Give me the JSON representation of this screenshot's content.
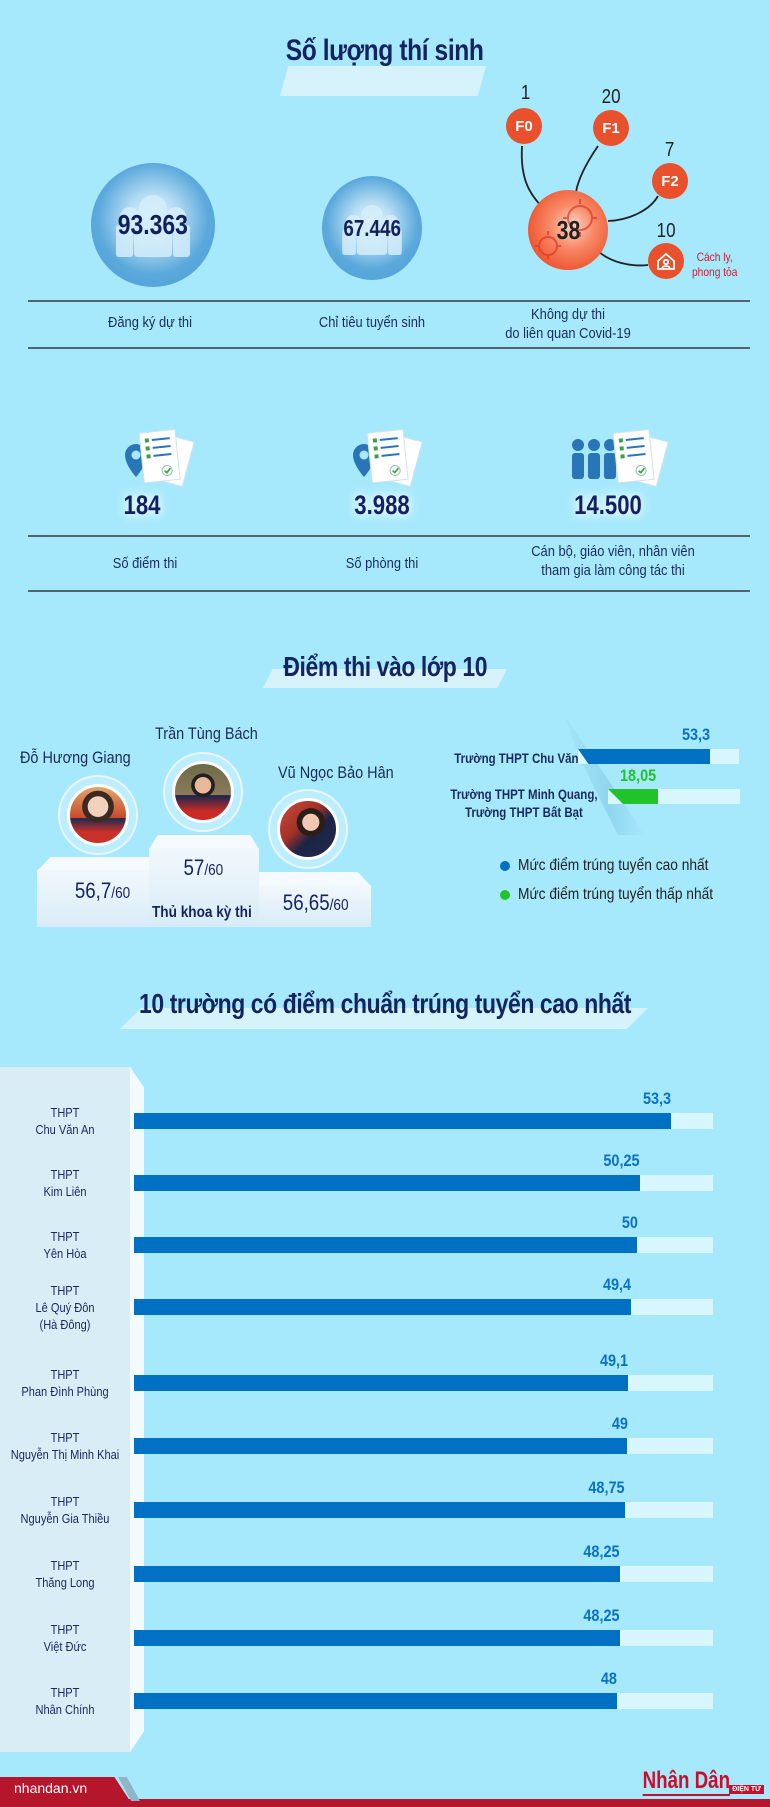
{
  "section1": {
    "title": "Số lượng thí sinh",
    "registered": {
      "value": "93.363",
      "label": "Đăng ký dự thi",
      "icon": "people-icon"
    },
    "quota": {
      "value": "67.446",
      "label": "Chỉ tiêu tuyển sinh",
      "icon": "people-icon"
    },
    "covid": {
      "total": "38",
      "label_line1": "Không dự thi",
      "label_line2": "do liên quan Covid-19",
      "nodes": [
        {
          "tag": "F0",
          "count": "1"
        },
        {
          "tag": "F1",
          "count": "20"
        },
        {
          "tag": "F2",
          "count": "7"
        },
        {
          "tag": "house-icon",
          "count": "10",
          "note_line1": "Cách ly,",
          "note_line2": "phong tỏa"
        }
      ]
    },
    "sites": {
      "value": "184",
      "label": "Số điểm thi",
      "icon": "map-pin-documents-icon"
    },
    "rooms": {
      "value": "3.988",
      "label": "Số phòng thi",
      "icon": "map-pin-documents-icon"
    },
    "staff": {
      "value": "14.500",
      "label_line1": "Cán bộ, giáo viên, nhân viên",
      "label_line2": "tham gia làm công tác thi",
      "icon": "people-documents-icon"
    }
  },
  "section2": {
    "title": "Điểm thi vào lớp 10",
    "podium": {
      "caption": "Thủ khoa kỳ thi",
      "left": {
        "name": "Đỗ Hương Giang",
        "score": "56,7",
        "max": "/60"
      },
      "center": {
        "name": "Trần Tùng Bách",
        "score": "57",
        "max": "/60"
      },
      "right": {
        "name": "Vũ Ngọc Bảo Hân",
        "score": "56,65",
        "max": "/60"
      }
    },
    "comparison": {
      "high": {
        "school": "Trường THPT Chu Văn An",
        "value": "53,3"
      },
      "low": {
        "school_line1": "Trường THPT Minh Quang,",
        "school_line2": "Trường THPT Bất Bạt",
        "value": "18,05"
      }
    },
    "legend": [
      {
        "label": "Mức điểm trúng tuyển cao nhất",
        "color": "#0070c2"
      },
      {
        "label": "Mức điểm trúng tuyển thấp nhất",
        "color": "#22c22a"
      }
    ]
  },
  "section3": {
    "title": "10 trường có điểm chuẩn trúng tuyển cao nhất",
    "rows": [
      {
        "line1": "THPT",
        "line2": "Chu Văn An",
        "line3": "",
        "value": "53,3"
      },
      {
        "line1": "THPT",
        "line2": "Kim Liên",
        "line3": "",
        "value": "50,25"
      },
      {
        "line1": "THPT",
        "line2": "Yên Hòa",
        "line3": "",
        "value": "50"
      },
      {
        "line1": "THPT",
        "line2": "Lê Quý Đôn",
        "line3": "(Hà Đông)",
        "value": "49,4"
      },
      {
        "line1": "THPT",
        "line2": "Phan Đình Phùng",
        "line3": "",
        "value": "49,1"
      },
      {
        "line1": "THPT",
        "line2": "Nguyễn Thị Minh Khai",
        "line3": "",
        "value": "49"
      },
      {
        "line1": "THPT",
        "line2": "Nguyễn Gia Thiều",
        "line3": "",
        "value": "48,75"
      },
      {
        "line1": "THPT",
        "line2": "Thăng Long",
        "line3": "",
        "value": "48,25"
      },
      {
        "line1": "THPT",
        "line2": "Việt Đức",
        "line3": "",
        "value": "48,25"
      },
      {
        "line1": "THPT",
        "line2": "Nhân Chính",
        "line3": "",
        "value": "48"
      }
    ]
  },
  "footer": {
    "site": "nhandan.vn",
    "brand": "Nhân Dân",
    "brand_sub": "ĐIỆN TỬ"
  },
  "colors": {
    "background": "#a6e9fc",
    "bar_high": "#0070c2",
    "bar_low": "#22c22a",
    "covid": "#e9502c",
    "brand_red": "#c8102e"
  },
  "chart_data": [
    {
      "type": "bar",
      "title": "Điểm thi vào lớp 10",
      "categories": [
        "Trường THPT Chu Văn An",
        "Trường THPT Minh Quang, Trường THPT Bất Bạt"
      ],
      "series": [
        {
          "name": "Mức điểm trúng tuyển cao nhất",
          "values": [
            53.3,
            null
          ]
        },
        {
          "name": "Mức điểm trúng tuyển thấp nhất",
          "values": [
            null,
            18.05
          ]
        }
      ],
      "orientation": "horizontal",
      "legend_position": "bottom"
    },
    {
      "type": "bar",
      "title": "10 trường có điểm chuẩn trúng tuyển cao nhất",
      "orientation": "horizontal",
      "categories": [
        "THPT Chu Văn An",
        "THPT Kim Liên",
        "THPT Yên Hòa",
        "THPT Lê Quý Đôn (Hà Đông)",
        "THPT Phan Đình Phùng",
        "THPT Nguyễn Thị Minh Khai",
        "THPT Nguyễn Gia Thiều",
        "THPT Thăng Long",
        "THPT Việt Đức",
        "THPT Nhân Chính"
      ],
      "values": [
        53.3,
        50.25,
        50,
        49.4,
        49.1,
        49,
        48.75,
        48.25,
        48.25,
        48
      ],
      "xlabel": "",
      "ylabel": "",
      "grid": false
    }
  ]
}
